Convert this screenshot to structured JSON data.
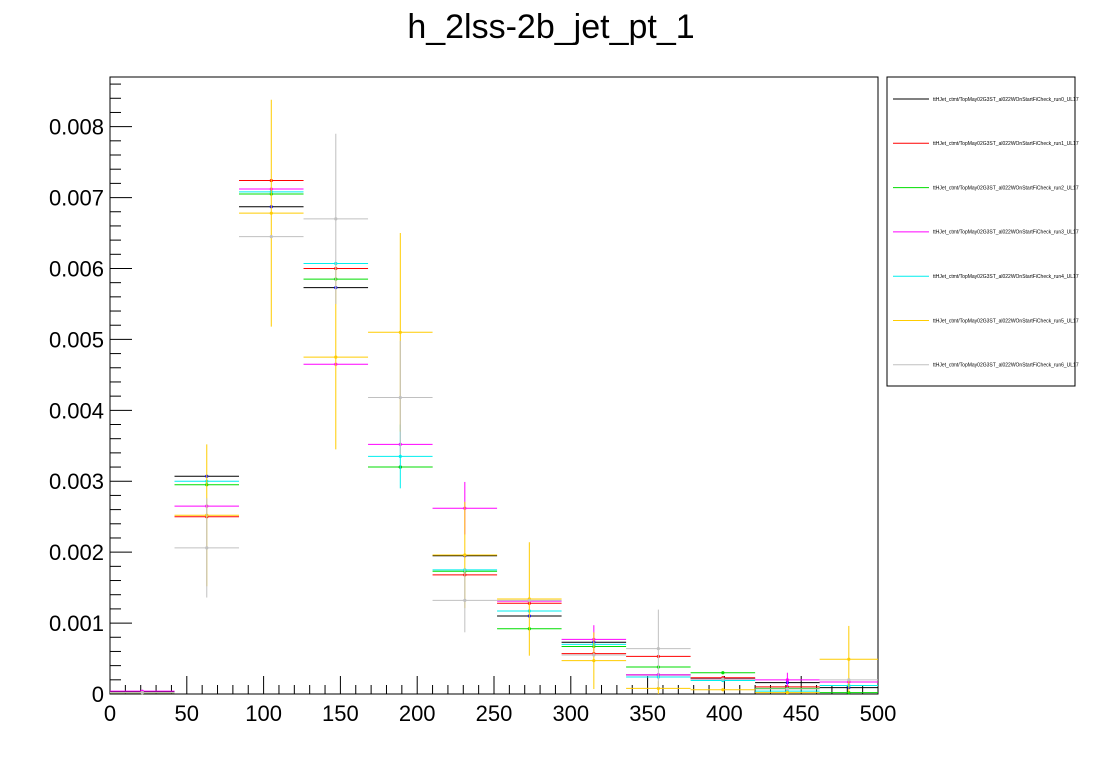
{
  "chart_data": {
    "type": "scatter",
    "title": "h_2lss-2b_jet_pt_1",
    "xlabel": "",
    "ylabel": "",
    "xlim": [
      0,
      500
    ],
    "ylim": [
      0,
      0.0087
    ],
    "bin_edges": [
      0,
      42,
      84,
      126,
      168,
      210,
      252,
      294,
      336,
      378,
      420,
      462,
      504
    ],
    "x_ticks": [
      0,
      50,
      100,
      150,
      200,
      250,
      300,
      350,
      400,
      450,
      500
    ],
    "x_tick_labels": [
      "0",
      "50",
      "100",
      "150",
      "200",
      "250",
      "300",
      "350",
      "400",
      "450",
      "500"
    ],
    "y_ticks": [
      0,
      0.001,
      0.002,
      0.003,
      0.004,
      0.005,
      0.006,
      0.007,
      0.008
    ],
    "y_tick_labels": [
      "0",
      "0.001",
      "0.002",
      "0.003",
      "0.004",
      "0.005",
      "0.006",
      "0.007",
      "0.008"
    ],
    "grid": false,
    "legend_position": "right",
    "series": [
      {
        "name": "ttHJet_ctmt/TopMay02G3ST_al022WOnStartFiCheck_run0_UL17",
        "color": "#0000ff",
        "line_color": "#000000",
        "values": [
          3e-05,
          0.00307,
          0.00687,
          0.00573,
          0.0032,
          0.00195,
          0.0011,
          0.00073,
          0.00027,
          0.00022,
          0.00016,
          9e-05
        ],
        "errors": [
          0,
          0,
          0,
          0,
          0,
          0,
          0,
          0,
          0,
          0,
          0,
          0
        ]
      },
      {
        "name": "ttHJet_ctmt/TopMay02G3ST_al022WOnStartFiCheck_run1_UL17",
        "color": "#ff0000",
        "values": [
          2e-05,
          0.0025,
          0.00724,
          0.006,
          0.0032,
          0.00168,
          0.00128,
          0.00057,
          0.00053,
          0.00023,
          0.0001,
          0.00017
        ],
        "errors": [
          0,
          0,
          0,
          0,
          0,
          0,
          0,
          0,
          0,
          0,
          0,
          0
        ]
      },
      {
        "name": "ttHJet_ctmt/TopMay02G3ST_al022WOnStartFiCheck_run2_UL17",
        "color": "#00dd00",
        "values": [
          2e-05,
          0.00295,
          0.00705,
          0.00585,
          0.0032,
          0.00173,
          0.00092,
          0.00067,
          0.00038,
          0.0003,
          8e-05,
          2e-05
        ],
        "errors": [
          0,
          0,
          0,
          0,
          0,
          0,
          0,
          0,
          0,
          0,
          0,
          0
        ]
      },
      {
        "name": "ttHJet_ctmt/TopMay02G3ST_al022WOnStartFiCheck_run3_UL17",
        "color": "#ff00ff",
        "values": [
          4e-05,
          0.00265,
          0.00712,
          0.00465,
          0.00352,
          0.00262,
          0.00131,
          0.00077,
          0.00027,
          0.00021,
          0.0002,
          0.00017
        ],
        "errors": [
          1e-05,
          0,
          0,
          0,
          0,
          0.00037,
          0,
          0.0002,
          0,
          0,
          0.0001,
          0
        ]
      },
      {
        "name": "ttHJet_ctmt/TopMay02G3ST_al022WOnStartFiCheck_run4_UL17",
        "color": "#00eeee",
        "values": [
          2e-05,
          0.003,
          0.00708,
          0.00607,
          0.00335,
          0.00175,
          0.00117,
          0.0007,
          0.00024,
          0.00019,
          4e-05,
          0.00012
        ],
        "errors": [
          0,
          0,
          0,
          0,
          0.00045,
          0,
          0,
          0,
          0,
          0,
          0,
          0
        ]
      },
      {
        "name": "ttHJet_ctmt/TopMay02G3ST_al022WOnStartFiCheck_run5_UL17",
        "color": "#ffcc00",
        "values": [
          2e-05,
          0.00252,
          0.00678,
          0.00475,
          0.0051,
          0.00196,
          0.00134,
          0.00047,
          8e-05,
          6e-05,
          2e-05,
          0.00049
        ],
        "errors": [
          0,
          0.001,
          0.0016,
          0.0013,
          0.0014,
          0.00075,
          0.0008,
          0.0004,
          0.0001,
          0,
          0,
          0.00047
        ]
      },
      {
        "name": "ttHJet_ctmt/TopMay02G3ST_al022WOnStartFiCheck_run6_UL17",
        "color": "#c0c0c0",
        "values": [
          2e-05,
          0.00206,
          0.00645,
          0.0067,
          0.00418,
          0.00132,
          0.00132,
          0.00055,
          0.00064,
          0.00021,
          7e-05,
          0.0002
        ],
        "errors": [
          0,
          0.0007,
          0,
          0.0012,
          0.0008,
          0.00045,
          0,
          0,
          0.00055,
          0,
          0,
          0
        ]
      }
    ]
  }
}
